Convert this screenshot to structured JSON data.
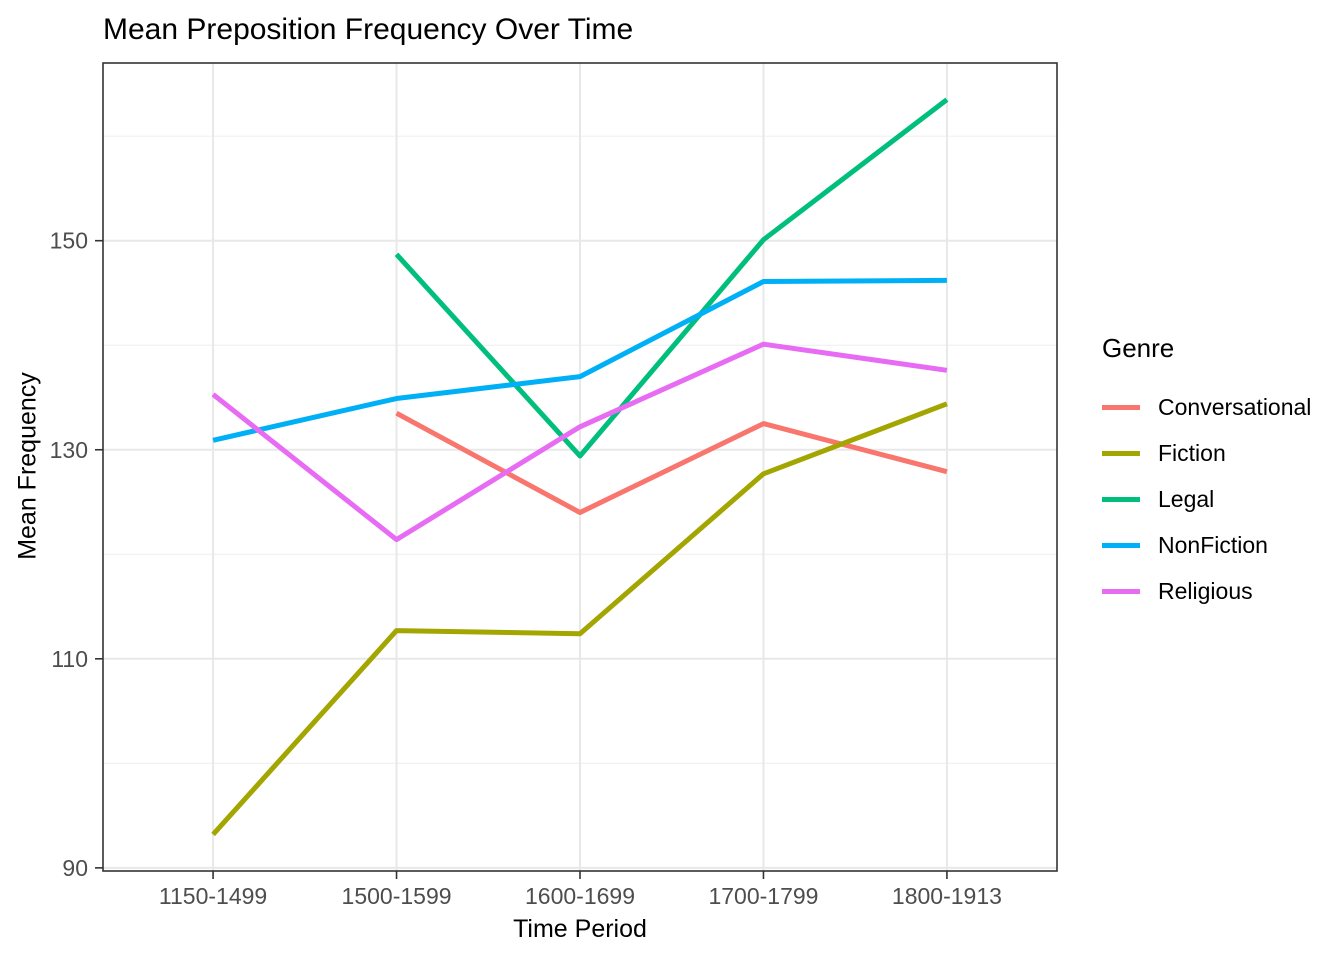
{
  "chart_data": {
    "type": "line",
    "title": "Mean Preposition Frequency Over Time",
    "xlabel": "Time Period",
    "ylabel": "Mean Frequency",
    "legend_title": "Genre",
    "legend_position": "right",
    "grid": true,
    "categories": [
      "1150-1499",
      "1500-1599",
      "1600-1699",
      "1700-1799",
      "1800-1913"
    ],
    "yticks": [
      90,
      110,
      130,
      150
    ],
    "yticks_minor": [
      100,
      120,
      140,
      160
    ],
    "ylim": [
      89.7,
      167.0
    ],
    "series": [
      {
        "name": "Conversational",
        "color": "#F8766D",
        "values": [
          null,
          133.5,
          124.0,
          132.5,
          127.9
        ]
      },
      {
        "name": "Fiction",
        "color": "#A3A500",
        "values": [
          93.2,
          112.7,
          112.4,
          127.7,
          134.4
        ]
      },
      {
        "name": "Legal",
        "color": "#00BF7D",
        "values": [
          null,
          148.7,
          129.4,
          150.1,
          163.5
        ]
      },
      {
        "name": "NonFiction",
        "color": "#00B0F6",
        "values": [
          130.9,
          134.9,
          137.0,
          146.1,
          146.2
        ]
      },
      {
        "name": "Religious",
        "color": "#E76BF3",
        "values": [
          135.3,
          121.4,
          132.2,
          140.1,
          137.6
        ]
      }
    ],
    "style": {
      "panel_border_color": "#333333",
      "tick_color": "#333333",
      "tick_label_color": "#4D4D4D",
      "grid_major_color": "#E8E8E8",
      "grid_minor_color": "#F0F0F0"
    }
  }
}
